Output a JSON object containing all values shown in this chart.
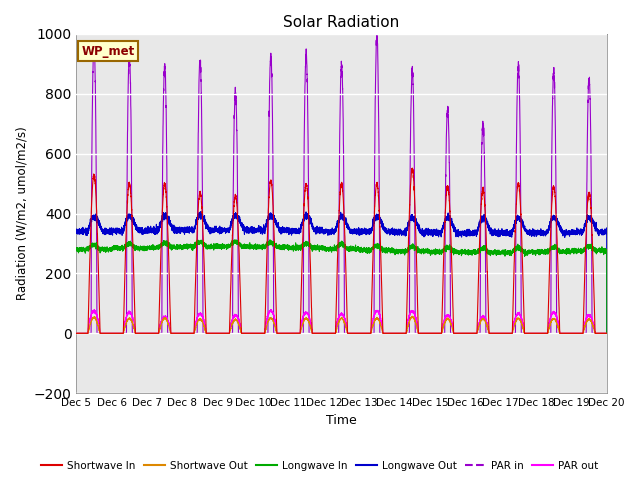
{
  "title": "Solar Radiation",
  "xlabel": "Time",
  "ylabel": "Radiation (W/m2, umol/m2/s)",
  "ylim": [
    -200,
    1000
  ],
  "xlim": [
    0,
    15
  ],
  "yticks": [
    -200,
    0,
    200,
    400,
    600,
    800,
    1000
  ],
  "xtick_labels": [
    "Dec 5",
    "Dec 6",
    "Dec 7",
    "Dec 8",
    "Dec 9",
    "Dec 10",
    "Dec 11",
    "Dec 12",
    "Dec 13",
    "Dec 14",
    "Dec 15",
    "Dec 16",
    "Dec 17",
    "Dec 18",
    "Dec 19",
    "Dec 20"
  ],
  "legend_entries": [
    "Shortwave In",
    "Shortwave Out",
    "Longwave In",
    "Longwave Out",
    "PAR in",
    "PAR out"
  ],
  "legend_colors": [
    "#dd0000",
    "#dd8800",
    "#00aa00",
    "#0000cc",
    "#9900cc",
    "#ff00ff"
  ],
  "legend_linestyles": [
    "-",
    "-",
    "-",
    "-",
    "-",
    "-"
  ],
  "site_label": "WP_met",
  "background_color": "#e8e8e8",
  "figsize": [
    6.4,
    4.8
  ],
  "dpi": 100,
  "sw_peaks": [
    530,
    500,
    500,
    470,
    460,
    510,
    500,
    500,
    500,
    550,
    490,
    480,
    500,
    490,
    470
  ],
  "par_in_peaks": [
    960,
    920,
    890,
    910,
    800,
    930,
    930,
    900,
    990,
    880,
    745,
    700,
    890,
    870,
    850
  ],
  "par_out_peaks": [
    75,
    70,
    55,
    65,
    60,
    75,
    70,
    65,
    75,
    75,
    60,
    55,
    65,
    70,
    60
  ],
  "lw_in_base": 280,
  "lw_out_base": 340,
  "n_days": 15,
  "pts_per_day": 480,
  "day_start": 0.33,
  "day_end": 0.67
}
